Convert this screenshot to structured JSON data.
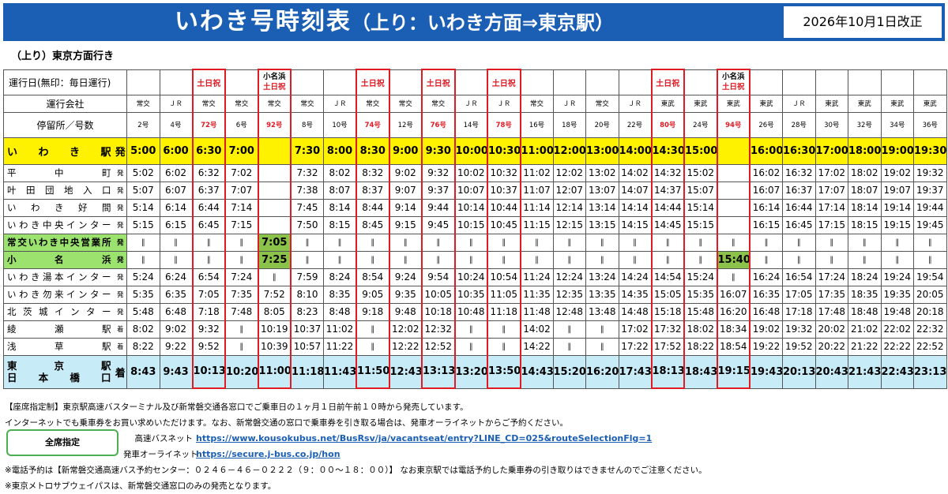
{
  "title": "いわき号時刻表",
  "subtitle": "（上り：いわき方面⇒東京駅）",
  "revision": "2026年10月1日改正",
  "section_heading": "（上り）東京方面行き",
  "header_labels": {
    "operating_day": "運行日(無印：毎日運行)",
    "operator": "運行会社",
    "stop_number": "停留所／号数"
  },
  "columns": [
    {
      "day": "",
      "op": "常交",
      "num": "2号",
      "red": false
    },
    {
      "day": "",
      "op": "ＪＲ",
      "num": "4号",
      "red": false
    },
    {
      "day": "土日祝",
      "op": "常交",
      "num": "72号",
      "red": true
    },
    {
      "day": "",
      "op": "常交",
      "num": "6号",
      "red": false
    },
    {
      "day": "小名浜|土日祝",
      "op": "常交",
      "num": "92号",
      "red": true
    },
    {
      "day": "",
      "op": "常交",
      "num": "8号",
      "red": false
    },
    {
      "day": "",
      "op": "ＪＲ",
      "num": "10号",
      "red": false
    },
    {
      "day": "土日祝",
      "op": "常交",
      "num": "74号",
      "red": true
    },
    {
      "day": "",
      "op": "常交",
      "num": "12号",
      "red": false
    },
    {
      "day": "土日祝",
      "op": "常交",
      "num": "76号",
      "red": true
    },
    {
      "day": "",
      "op": "ＪＲ",
      "num": "14号",
      "red": false
    },
    {
      "day": "土日祝",
      "op": "ＪＲ",
      "num": "78号",
      "red": true
    },
    {
      "day": "",
      "op": "常交",
      "num": "16号",
      "red": false
    },
    {
      "day": "",
      "op": "ＪＲ",
      "num": "18号",
      "red": false
    },
    {
      "day": "",
      "op": "常交",
      "num": "20号",
      "red": false
    },
    {
      "day": "",
      "op": "ＪＲ",
      "num": "22号",
      "red": false
    },
    {
      "day": "土日祝",
      "op": "東武",
      "num": "80号",
      "red": true
    },
    {
      "day": "",
      "op": "東武",
      "num": "24号",
      "red": false
    },
    {
      "day": "小名浜|土日祝",
      "op": "東武",
      "num": "94号",
      "red": true
    },
    {
      "day": "",
      "op": "東武",
      "num": "26号",
      "red": false
    },
    {
      "day": "",
      "op": "ＪＲ",
      "num": "28号",
      "red": false
    },
    {
      "day": "",
      "op": "東武",
      "num": "30号",
      "red": false
    },
    {
      "day": "",
      "op": "東武",
      "num": "32号",
      "red": false
    },
    {
      "day": "",
      "op": "東武",
      "num": "34号",
      "red": false
    },
    {
      "day": "",
      "op": "東武",
      "num": "36号",
      "red": false
    }
  ],
  "stops": [
    {
      "name": "いわき駅",
      "mark": "発",
      "kind": "iwaki",
      "times": [
        "5:00",
        "6:00",
        "6:30",
        "7:00",
        "",
        "7:30",
        "8:00",
        "8:30",
        "9:00",
        "9:30",
        "10:00",
        "10:30",
        "11:00",
        "12:00",
        "13:00",
        "14:00",
        "14:30",
        "15:00",
        "",
        "16:00",
        "16:30",
        "17:00",
        "18:00",
        "19:00",
        "19:30"
      ]
    },
    {
      "name": "平中町",
      "mark": "発",
      "kind": "",
      "times": [
        "5:02",
        "6:02",
        "6:32",
        "7:02",
        "",
        "7:32",
        "8:02",
        "8:32",
        "9:02",
        "9:32",
        "10:02",
        "10:32",
        "11:02",
        "12:02",
        "13:02",
        "14:02",
        "14:32",
        "15:02",
        "",
        "16:02",
        "16:32",
        "17:02",
        "18:02",
        "19:02",
        "19:32"
      ]
    },
    {
      "name": "叶田団地入口",
      "mark": "発",
      "kind": "",
      "times": [
        "5:07",
        "6:07",
        "6:37",
        "7:07",
        "",
        "7:38",
        "8:07",
        "8:37",
        "9:07",
        "9:37",
        "10:07",
        "10:37",
        "11:07",
        "12:07",
        "13:07",
        "14:07",
        "14:37",
        "15:07",
        "",
        "16:07",
        "16:37",
        "17:07",
        "18:07",
        "19:07",
        "19:37"
      ]
    },
    {
      "name": "いわき好間",
      "mark": "発",
      "kind": "",
      "times": [
        "5:14",
        "6:14",
        "6:44",
        "7:14",
        "",
        "7:45",
        "8:14",
        "8:44",
        "9:14",
        "9:44",
        "10:14",
        "10:44",
        "11:14",
        "12:14",
        "13:14",
        "14:14",
        "14:44",
        "15:14",
        "",
        "16:14",
        "16:44",
        "17:14",
        "18:14",
        "19:14",
        "19:44"
      ]
    },
    {
      "name": "いわき中央インター",
      "mark": "発",
      "kind": "",
      "times": [
        "5:15",
        "6:15",
        "6:45",
        "7:15",
        "",
        "7:50",
        "8:15",
        "8:45",
        "9:15",
        "9:45",
        "10:15",
        "10:45",
        "11:15",
        "12:15",
        "13:15",
        "14:15",
        "14:45",
        "15:15",
        "",
        "16:15",
        "16:45",
        "17:15",
        "18:15",
        "19:15",
        "19:45"
      ]
    },
    {
      "name": "常交いわき中央営業所",
      "mark": "発",
      "kind": "green",
      "times": [
        "‖",
        "‖",
        "‖",
        "‖",
        "7:05",
        "‖",
        "‖",
        "‖",
        "‖",
        "‖",
        "‖",
        "‖",
        "‖",
        "‖",
        "‖",
        "‖",
        "‖",
        "‖",
        "‖",
        "‖",
        "‖",
        "‖",
        "‖",
        "‖",
        "‖"
      ]
    },
    {
      "name": "小名浜",
      "mark": "発",
      "kind": "green",
      "times": [
        "‖",
        "‖",
        "‖",
        "‖",
        "7:25",
        "‖",
        "‖",
        "‖",
        "‖",
        "‖",
        "‖",
        "‖",
        "‖",
        "‖",
        "‖",
        "‖",
        "‖",
        "‖",
        "15:40",
        "‖",
        "‖",
        "‖",
        "‖",
        "‖",
        "‖"
      ]
    },
    {
      "name": "いわき湯本インター",
      "mark": "発",
      "kind": "",
      "times": [
        "5:24",
        "6:24",
        "6:54",
        "7:24",
        "‖",
        "7:59",
        "8:24",
        "8:54",
        "9:24",
        "9:54",
        "10:24",
        "10:54",
        "11:24",
        "12:24",
        "13:24",
        "14:24",
        "14:54",
        "15:24",
        "‖",
        "16:24",
        "16:54",
        "17:24",
        "18:24",
        "19:24",
        "19:54"
      ]
    },
    {
      "name": "いわき勿来インター",
      "mark": "発",
      "kind": "",
      "times": [
        "5:35",
        "6:35",
        "7:05",
        "7:35",
        "7:52",
        "8:10",
        "8:35",
        "9:05",
        "9:35",
        "10:05",
        "10:35",
        "11:05",
        "11:35",
        "12:35",
        "13:35",
        "14:35",
        "15:05",
        "15:35",
        "16:07",
        "16:35",
        "17:05",
        "17:35",
        "18:35",
        "19:35",
        "20:05"
      ]
    },
    {
      "name": "北茨城インター",
      "mark": "発",
      "kind": "",
      "times": [
        "5:48",
        "6:48",
        "7:18",
        "7:48",
        "8:05",
        "8:23",
        "8:48",
        "9:18",
        "9:48",
        "10:18",
        "10:48",
        "11:18",
        "11:48",
        "12:48",
        "13:48",
        "14:48",
        "15:18",
        "15:48",
        "16:20",
        "16:48",
        "17:18",
        "17:48",
        "18:48",
        "19:48",
        "20:18"
      ]
    },
    {
      "name": "綾瀬駅",
      "mark": "着",
      "kind": "",
      "times": [
        "8:02",
        "9:02",
        "9:32",
        "‖",
        "10:19",
        "10:37",
        "11:02",
        "‖",
        "12:02",
        "12:32",
        "‖",
        "‖",
        "14:02",
        "‖",
        "‖",
        "17:02",
        "17:32",
        "18:02",
        "18:34",
        "19:02",
        "19:32",
        "20:02",
        "21:02",
        "22:02",
        "22:32"
      ]
    },
    {
      "name": "浅草駅",
      "mark": "着",
      "kind": "",
      "times": [
        "8:22",
        "9:22",
        "9:52",
        "‖",
        "10:39",
        "10:57",
        "11:22",
        "‖",
        "12:22",
        "12:52",
        "‖",
        "‖",
        "14:22",
        "‖",
        "‖",
        "17:22",
        "17:52",
        "18:22",
        "18:54",
        "19:22",
        "19:52",
        "20:22",
        "21:22",
        "22:22",
        "22:52"
      ]
    },
    {
      "name": "東京駅|日本橋口",
      "mark": "着",
      "kind": "tokyo",
      "times": [
        "8:43",
        "9:43",
        "10:13",
        "10:20",
        "11:00",
        "11:18",
        "11:43",
        "11:50",
        "12:43",
        "13:13",
        "13:20",
        "13:50",
        "14:43",
        "15:20",
        "16:20",
        "17:43",
        "18:13",
        "18:43",
        "19:15",
        "19:43",
        "20:13",
        "20:43",
        "21:43",
        "22:43",
        "23:13"
      ]
    }
  ],
  "notes": {
    "line1": "【座席指定制】東京駅高速バスターミナル及び新常磐交通各窓口でご乗車日の１ヶ月１日前午前１０時から発売しています。",
    "line2": "インターネットでも乗車券をお買い求めいただけます。なお、新常磐交通の窓口で乗車券を引き取る場合は、発車オーライネットからご予約ください。",
    "seat_button": "全席指定",
    "kosoku_label": "高速バスネット",
    "kosoku_url": "https://www.kousokubus.net/BusRsv/ja/vacantseat/entry?LINE_CD=025&routeSelectionFlg=1",
    "jbus_label": "発車オーライネット",
    "jbus_url": "https://secure.j-bus.co.jp/hon",
    "line5": "※電話予約は【新常磐交通高速バス予約センター：０２４６－４６－０２２２（９：００～１８：００）】 なお東京駅では電話予約した乗車券の引き取りはできませんのでご注意ください。",
    "line6": "※東京メトロサブウェイパスは、新常磐交通窓口のみの発売となります。"
  },
  "colors": {
    "banner": "#1a5fb4",
    "highlight_yellow": "#fff200",
    "highlight_blue": "#c8ecf7",
    "highlight_green": "#8bc34a",
    "weekend_red": "#e01b24"
  }
}
